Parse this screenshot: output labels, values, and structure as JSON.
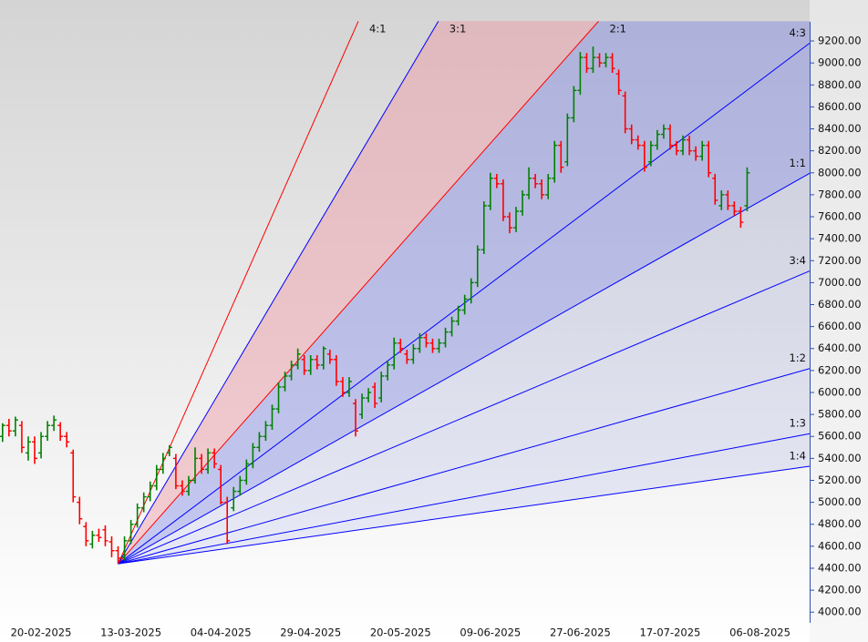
{
  "chart_data": {
    "type": "ohlc",
    "categories": [
      null,
      null,
      null,
      null,
      null,
      null,
      "20-02-2025",
      null,
      null,
      null,
      null,
      null,
      null,
      null,
      null,
      null,
      null,
      null,
      null,
      null,
      "13-03-2025",
      null,
      null,
      null,
      null,
      null,
      null,
      null,
      null,
      null,
      null,
      null,
      null,
      null,
      "04-04-2025",
      null,
      null,
      null,
      null,
      null,
      null,
      null,
      null,
      null,
      null,
      null,
      null,
      null,
      "29-04-2025",
      null,
      null,
      null,
      null,
      null,
      null,
      null,
      null,
      null,
      null,
      null,
      null,
      null,
      "20-05-2025",
      null,
      null,
      null,
      null,
      null,
      null,
      null,
      null,
      null,
      null,
      null,
      null,
      null,
      "09-06-2025",
      null,
      null,
      null,
      null,
      null,
      null,
      null,
      null,
      null,
      null,
      null,
      null,
      null,
      "27-06-2025",
      null,
      null,
      null,
      null,
      null,
      null,
      null,
      null,
      null,
      null,
      null,
      null,
      null,
      "17-07-2025",
      null,
      null,
      null,
      null,
      null,
      null,
      null,
      null,
      null,
      null,
      null,
      null,
      null,
      "06-08-2025"
    ],
    "values": [
      [
        5600,
        5720,
        5550,
        5700
      ],
      [
        5700,
        5760,
        5600,
        5650
      ],
      [
        5650,
        5780,
        5600,
        5750
      ],
      [
        5700,
        5740,
        5450,
        5500
      ],
      [
        5450,
        5600,
        5380,
        5550
      ],
      [
        5550,
        5600,
        5350,
        5400
      ],
      [
        5450,
        5640,
        5400,
        5600
      ],
      [
        5600,
        5740,
        5560,
        5700
      ],
      [
        5700,
        5790,
        5650,
        5750
      ],
      [
        5700,
        5730,
        5560,
        5600
      ],
      [
        5600,
        5640,
        5500,
        5550
      ],
      [
        5450,
        5480,
        5000,
        5050
      ],
      [
        5000,
        5050,
        4800,
        4850
      ],
      [
        4780,
        4820,
        4600,
        4650
      ],
      [
        4620,
        4740,
        4580,
        4700
      ],
      [
        4700,
        4760,
        4640,
        4680
      ],
      [
        4750,
        4790,
        4600,
        4650
      ],
      [
        4640,
        4690,
        4500,
        4560
      ],
      [
        4560,
        4600,
        4440,
        4490
      ],
      [
        4500,
        4690,
        4470,
        4650
      ],
      [
        4650,
        4840,
        4620,
        4800
      ],
      [
        4800,
        4990,
        4770,
        4950
      ],
      [
        4950,
        5090,
        4910,
        5050
      ],
      [
        5050,
        5190,
        5010,
        5150
      ],
      [
        5150,
        5340,
        5110,
        5300
      ],
      [
        5300,
        5450,
        5260,
        5400
      ],
      [
        5450,
        5520,
        5420,
        5500
      ],
      [
        5400,
        5440,
        5120,
        5150
      ],
      [
        5150,
        5200,
        5060,
        5100
      ],
      [
        5100,
        5240,
        5060,
        5200
      ],
      [
        5200,
        5500,
        5170,
        5400
      ],
      [
        5400,
        5440,
        5260,
        5300
      ],
      [
        5300,
        5490,
        5260,
        5450
      ],
      [
        5450,
        5490,
        5310,
        5350
      ],
      [
        5300,
        5340,
        4980,
        5000
      ],
      [
        5000,
        5050,
        4620,
        4650
      ],
      [
        4950,
        5140,
        4920,
        5100
      ],
      [
        5100,
        5240,
        5060,
        5200
      ],
      [
        5200,
        5390,
        5160,
        5350
      ],
      [
        5350,
        5540,
        5310,
        5500
      ],
      [
        5500,
        5640,
        5460,
        5600
      ],
      [
        5600,
        5740,
        5560,
        5700
      ],
      [
        5700,
        5890,
        5660,
        5850
      ],
      [
        5850,
        6090,
        5810,
        6050
      ],
      [
        6050,
        6190,
        6010,
        6150
      ],
      [
        6150,
        6290,
        6110,
        6250
      ],
      [
        6250,
        6400,
        6210,
        6350
      ],
      [
        6300,
        6340,
        6160,
        6200
      ],
      [
        6200,
        6340,
        6160,
        6300
      ],
      [
        6300,
        6340,
        6210,
        6250
      ],
      [
        6250,
        6420,
        6210,
        6400
      ],
      [
        6350,
        6390,
        6260,
        6300
      ],
      [
        6300,
        6340,
        6060,
        6100
      ],
      [
        6100,
        6140,
        5960,
        6000
      ],
      [
        6000,
        6140,
        5960,
        6100
      ],
      [
        5900,
        5940,
        5600,
        5650
      ],
      [
        5800,
        5990,
        5760,
        5950
      ],
      [
        5950,
        6040,
        5910,
        6000
      ],
      [
        6050,
        6090,
        5860,
        5900
      ],
      [
        5950,
        6190,
        5910,
        6150
      ],
      [
        6150,
        6290,
        6110,
        6250
      ],
      [
        6250,
        6500,
        6210,
        6450
      ],
      [
        6450,
        6490,
        6360,
        6400
      ],
      [
        6350,
        6390,
        6260,
        6300
      ],
      [
        6300,
        6440,
        6260,
        6400
      ],
      [
        6400,
        6540,
        6360,
        6500
      ],
      [
        6500,
        6540,
        6410,
        6450
      ],
      [
        6450,
        6490,
        6360,
        6400
      ],
      [
        6400,
        6490,
        6360,
        6450
      ],
      [
        6450,
        6590,
        6410,
        6550
      ],
      [
        6550,
        6690,
        6510,
        6650
      ],
      [
        6650,
        6790,
        6610,
        6750
      ],
      [
        6750,
        6890,
        6710,
        6850
      ],
      [
        6850,
        7040,
        6810,
        7000
      ],
      [
        7000,
        7340,
        6960,
        7300
      ],
      [
        7300,
        7740,
        7260,
        7700
      ],
      [
        7700,
        8000,
        7660,
        7950
      ],
      [
        7950,
        7990,
        7860,
        7900
      ],
      [
        7900,
        7940,
        7560,
        7600
      ],
      [
        7600,
        7640,
        7450,
        7500
      ],
      [
        7500,
        7690,
        7460,
        7650
      ],
      [
        7650,
        7840,
        7610,
        7800
      ],
      [
        7800,
        8050,
        7760,
        7950
      ],
      [
        7950,
        7990,
        7860,
        7900
      ],
      [
        7900,
        7940,
        7760,
        7800
      ],
      [
        7800,
        7990,
        7760,
        7950
      ],
      [
        7950,
        8290,
        7910,
        8250
      ],
      [
        8250,
        8290,
        8000,
        8050
      ],
      [
        8100,
        8540,
        8060,
        8500
      ],
      [
        8500,
        8790,
        8460,
        8750
      ],
      [
        8750,
        9100,
        8710,
        9050
      ],
      [
        9050,
        9090,
        8910,
        8950
      ],
      [
        8950,
        9150,
        8910,
        9050
      ],
      [
        9050,
        9090,
        8960,
        9000
      ],
      [
        9000,
        9090,
        8960,
        9050
      ],
      [
        9050,
        9090,
        8910,
        8950
      ],
      [
        8900,
        8940,
        8710,
        8750
      ],
      [
        8700,
        8740,
        8360,
        8400
      ],
      [
        8400,
        8440,
        8260,
        8300
      ],
      [
        8300,
        8340,
        8210,
        8250
      ],
      [
        8250,
        8290,
        8010,
        8050
      ],
      [
        8100,
        8290,
        8060,
        8250
      ],
      [
        8250,
        8390,
        8210,
        8350
      ],
      [
        8350,
        8440,
        8310,
        8400
      ],
      [
        8400,
        8440,
        8210,
        8250
      ],
      [
        8250,
        8290,
        8160,
        8200
      ],
      [
        8200,
        8340,
        8160,
        8300
      ],
      [
        8300,
        8340,
        8160,
        8200
      ],
      [
        8200,
        8240,
        8110,
        8150
      ],
      [
        8150,
        8290,
        8110,
        8250
      ],
      [
        8250,
        8290,
        7960,
        8000
      ],
      [
        7950,
        7990,
        7710,
        7750
      ],
      [
        7700,
        7840,
        7660,
        7800
      ],
      [
        7800,
        7840,
        7660,
        7700
      ],
      [
        7700,
        7740,
        7610,
        7650
      ],
      [
        7650,
        7690,
        7500,
        7550
      ],
      [
        7700,
        8050,
        7650,
        8000
      ],
      null,
      null
    ],
    "up_color": "#008000",
    "down_color": "#ff0000",
    "ylim": [
      3900,
      9380
    ],
    "yticks": [
      {
        "value": 9200,
        "label": "9200.00"
      },
      {
        "value": 9000,
        "label": "9000.00"
      },
      {
        "value": 8800,
        "label": "8800.00"
      },
      {
        "value": 8600,
        "label": "8600.00"
      },
      {
        "value": 8400,
        "label": "8400.00"
      },
      {
        "value": 8200,
        "label": "8200.00"
      },
      {
        "value": 8000,
        "label": "8000.00"
      },
      {
        "value": 7800,
        "label": "7800.00"
      },
      {
        "value": 7600,
        "label": "7600.00"
      },
      {
        "value": 7400,
        "label": "7400.00"
      },
      {
        "value": 7200,
        "label": "7200.00"
      },
      {
        "value": 7000,
        "label": "7000.00"
      },
      {
        "value": 6800,
        "label": "6800.00"
      },
      {
        "value": 6600,
        "label": "6600.00"
      },
      {
        "value": 6400,
        "label": "6400.00"
      },
      {
        "value": 6200,
        "label": "6200.00"
      },
      {
        "value": 6000,
        "label": "6000.00"
      },
      {
        "value": 5800,
        "label": "5800.00"
      },
      {
        "value": 5600,
        "label": "5600.00"
      },
      {
        "value": 5400,
        "label": "5400.00"
      },
      {
        "value": 5200,
        "label": "5200.00"
      },
      {
        "value": 5000,
        "label": "5000.00"
      },
      {
        "value": 4800,
        "label": "4800.00"
      },
      {
        "value": 4600,
        "label": "4600.00"
      },
      {
        "value": 4400,
        "label": "4400.00"
      },
      {
        "value": 4200,
        "label": "4200.00"
      },
      {
        "value": 4000,
        "label": "4000.00"
      }
    ],
    "fan_origin_index": 18,
    "fan_origin_price": 4440,
    "fan_unit": 33,
    "fan_lines": [
      {
        "label": "4:1",
        "ratio": 4,
        "color": "#ff0000"
      },
      {
        "label": "3:1",
        "ratio": 3,
        "color": "#0000ff"
      },
      {
        "label": "2:1",
        "ratio": 2,
        "color": "#ff0000"
      },
      {
        "label": "4:3",
        "ratio": 1.3333,
        "color": "#0000ff"
      },
      {
        "label": "1:1",
        "ratio": 1,
        "color": "#0000ff"
      },
      {
        "label": "3:4",
        "ratio": 0.75,
        "color": "#0000ff"
      },
      {
        "label": "1:2",
        "ratio": 0.5,
        "color": "#0000ff"
      },
      {
        "label": "1:3",
        "ratio": 0.3333,
        "color": "#0000ff"
      },
      {
        "label": "1:4",
        "ratio": 0.25,
        "color": "#0000ff"
      }
    ]
  }
}
